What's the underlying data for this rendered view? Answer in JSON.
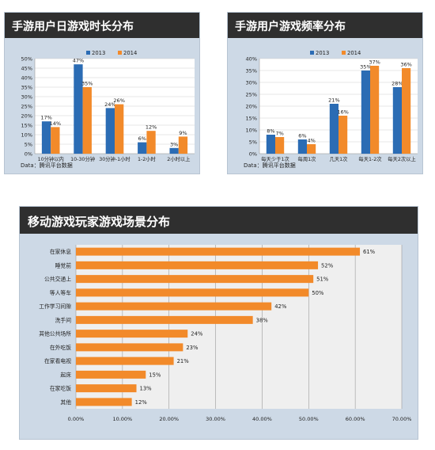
{
  "colors": {
    "c2013": "#2b6cb4",
    "c2014": "#f28a2a",
    "bar3": "#f28a2a",
    "panel_bg": "#cdd9e6",
    "plot_bg": "#ffffff"
  },
  "charts": {
    "duration": {
      "title": "手游用户日游戏时长分布",
      "source": "Data：腾讯平台数据"
    },
    "frequency": {
      "title": "手游用户游戏频率分布",
      "source": "Data：腾讯平台数据"
    },
    "scenes": {
      "title": "移动游戏玩家游戏场景分布"
    }
  },
  "chart_data": [
    {
      "type": "bar",
      "title": "手游用户日游戏时长分布",
      "categories": [
        "10分钟以内",
        "10-30分钟",
        "30分钟-1小时",
        "1-2小时",
        "2小时以上"
      ],
      "series": [
        {
          "name": "2013",
          "values": [
            17,
            47,
            24,
            6,
            3
          ],
          "labels": [
            "17%",
            "47%",
            "24%",
            "6%",
            "3%"
          ]
        },
        {
          "name": "2014",
          "values": [
            14,
            35,
            26,
            12,
            9
          ],
          "labels": [
            "14%",
            "35%",
            "26%",
            "12%",
            "9%"
          ]
        }
      ],
      "ylim": [
        0,
        50
      ],
      "yticks": [
        "0%",
        "5%",
        "10%",
        "15%",
        "20%",
        "25%",
        "30%",
        "35%",
        "40%",
        "45%",
        "50%"
      ],
      "grid": true,
      "legend": "top-center"
    },
    {
      "type": "bar",
      "title": "手游用户游戏频率分布",
      "categories": [
        "每天少于1次",
        "每周1次",
        "几天1次",
        "每天1-2次",
        "每天2次以上"
      ],
      "series": [
        {
          "name": "2013",
          "values": [
            8,
            6,
            21,
            35,
            28
          ],
          "labels": [
            "8%",
            "6%",
            "21%",
            "35%",
            "28%"
          ]
        },
        {
          "name": "2014",
          "values": [
            7,
            4,
            16,
            37,
            36
          ],
          "labels": [
            "7%",
            "4%",
            "16%",
            "37%",
            "36%"
          ]
        }
      ],
      "ylim": [
        0,
        40
      ],
      "yticks": [
        "0%",
        "5%",
        "10%",
        "15%",
        "20%",
        "25%",
        "30%",
        "35%",
        "40%"
      ],
      "grid": true,
      "legend": "top-center"
    },
    {
      "type": "bar",
      "orientation": "horizontal",
      "title": "移动游戏玩家游戏场景分布",
      "categories": [
        "在家休息",
        "睡觉前",
        "公共交通上",
        "等人等车",
        "工作学习间隙",
        "洗手间",
        "其他公共场所",
        "在外吃饭",
        "在家看电视",
        "起床",
        "在家吃饭",
        "其他"
      ],
      "values": [
        61,
        52,
        51,
        50,
        42,
        38,
        24,
        23,
        21,
        15,
        13,
        12
      ],
      "labels": [
        "61%",
        "52%",
        "51%",
        "50%",
        "42%",
        "38%",
        "24%",
        "23%",
        "21%",
        "15%",
        "13%",
        "12%"
      ],
      "xlim": [
        0,
        70
      ],
      "xticks": [
        "0.00%",
        "10.00%",
        "20.00%",
        "30.00%",
        "40.00%",
        "50.00%",
        "60.00%",
        "70.00%"
      ],
      "grid": true
    }
  ]
}
